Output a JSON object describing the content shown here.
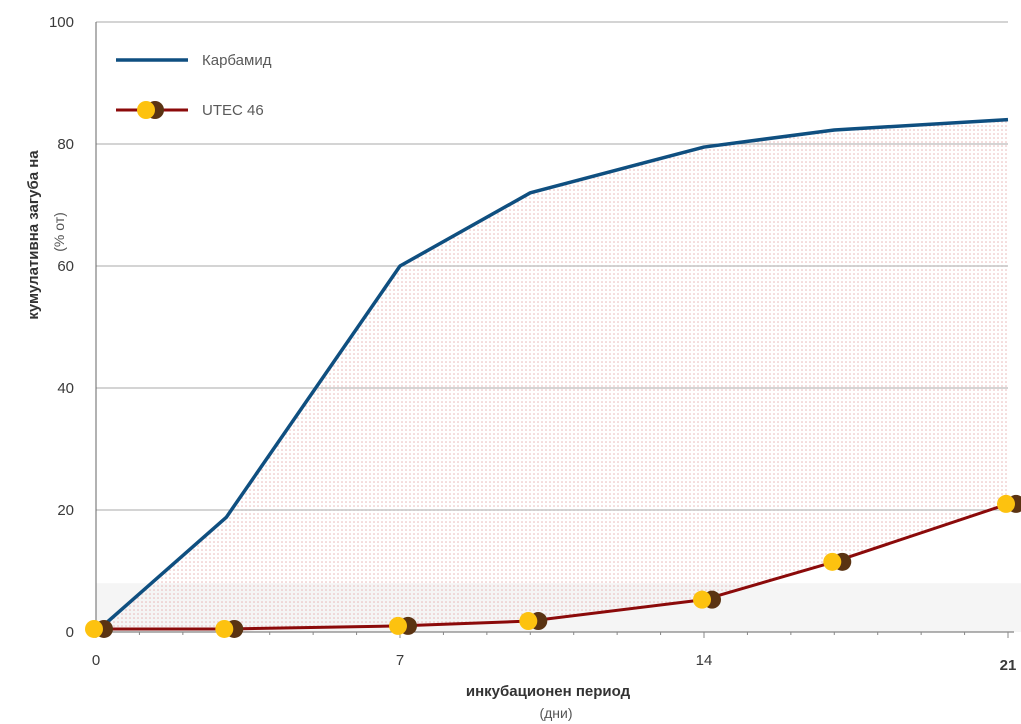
{
  "colors": {
    "karbamid": "#0f4f80",
    "utec": "#8b0a0a",
    "marker_front": "#fdc20f",
    "marker_back": "#5a3312",
    "dots": "#e6b2b2"
  },
  "chart_data": {
    "type": "line",
    "x": [
      0,
      3,
      7,
      10,
      14,
      17,
      21
    ],
    "xticks": [
      "0",
      "7",
      "14",
      "21"
    ],
    "xtick_values": [
      0,
      7,
      14,
      21
    ],
    "yticks": [
      "0",
      "20",
      "40",
      "60",
      "80",
      "100"
    ],
    "ytick_values": [
      0,
      20,
      40,
      60,
      80,
      100
    ],
    "xlim": [
      0,
      21
    ],
    "ylim": [
      0,
      100
    ],
    "xlabel": "инкубационен период",
    "xunit": "(дни)",
    "ylabel": "кумулативна загуба на",
    "yunit": "(% от)",
    "grid": "horizontal",
    "legend_position": "top-left",
    "series": [
      {
        "name": "Карбамид",
        "values": [
          0,
          18.8,
          60,
          72,
          79.5,
          82.3,
          84
        ]
      },
      {
        "name": "UTEC 46",
        "values": [
          0.5,
          0.5,
          1,
          1.8,
          5.3,
          11.5,
          21
        ]
      }
    ]
  }
}
